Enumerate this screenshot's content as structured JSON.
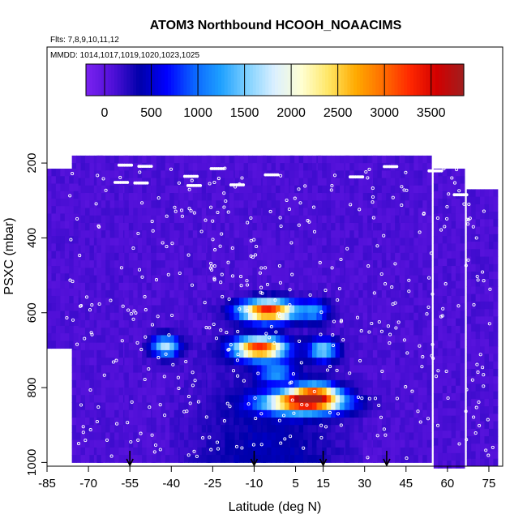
{
  "chart_data": {
    "type": "heatmap",
    "title": "ATOM3 Northbound HCOOH_NOAACIMS",
    "flights_label": "Flts: 7,8,9,10,11,12",
    "dates_label": "MMDD: 1014,1017,1019,1020,1023,1025",
    "xlabel": "Latitude (deg N)",
    "ylabel": "PSXC (mbar)",
    "x_ticks": [
      "-85",
      "-70",
      "-55",
      "-40",
      "-25",
      "-10",
      "5",
      "15",
      "30",
      "45",
      "60",
      "75"
    ],
    "x_tick_values": [
      -85,
      -70,
      -55,
      -40,
      -25,
      -10,
      5,
      15,
      30,
      45,
      60,
      75
    ],
    "x_range": [
      -85,
      80
    ],
    "y_ticks": [
      "200",
      "400",
      "600",
      "800",
      "1000"
    ],
    "y_tick_values": [
      200,
      400,
      600,
      800,
      1000
    ],
    "y_range": [
      1010,
      -110
    ],
    "y_inverted": true,
    "colorbar": {
      "ticks": [
        "0",
        "500",
        "1000",
        "1500",
        "2000",
        "2500",
        "3000",
        "3500"
      ],
      "tick_values": [
        0,
        500,
        1000,
        1500,
        2000,
        2500,
        3000,
        3500
      ],
      "range": [
        -200,
        3850
      ],
      "colors": [
        "#7a22f0",
        "#5010d8",
        "#0000aa",
        "#0000ff",
        "#0a64ff",
        "#1ea0ff",
        "#82d2ff",
        "#dcf0ff",
        "#ffffd2",
        "#ffe664",
        "#ffaa00",
        "#ff6e00",
        "#ff2800",
        "#d20000",
        "#a01e1e"
      ]
    },
    "background_value": 100,
    "hotspots": [
      {
        "lat": -5,
        "p": 595,
        "width": 10,
        "value": 3300
      },
      {
        "lat": -8,
        "p": 695,
        "width": 9,
        "value": 3200
      },
      {
        "lat": 8,
        "p": 840,
        "width": 14,
        "value": 3100
      },
      {
        "lat": 12,
        "p": 815,
        "width": 8,
        "value": 2000
      },
      {
        "lat": 15,
        "p": 700,
        "width": 5,
        "value": 1500
      },
      {
        "lat": -42,
        "p": 690,
        "width": 5,
        "value": 1600
      },
      {
        "lat": 12,
        "p": 595,
        "width": 5,
        "value": 1000
      },
      {
        "lat": -2,
        "p": 760,
        "width": 6,
        "value": 1000
      }
    ],
    "columns": [
      {
        "lat": -71,
        "top": 180,
        "bottom": 1000
      },
      {
        "lat": -80,
        "top": 215,
        "bottom": 680
      },
      {
        "lat": -62,
        "top": 180,
        "bottom": 1000
      },
      {
        "lat": -52,
        "top": 180,
        "bottom": 1000
      },
      {
        "lat": -42,
        "top": 180,
        "bottom": 1000
      },
      {
        "lat": -32,
        "top": 180,
        "bottom": 1000
      },
      {
        "lat": -22,
        "top": 180,
        "bottom": 1000
      },
      {
        "lat": -12,
        "top": 180,
        "bottom": 1000
      },
      {
        "lat": -2,
        "top": 180,
        "bottom": 1000
      },
      {
        "lat": 8,
        "top": 180,
        "bottom": 1000
      },
      {
        "lat": 18,
        "top": 180,
        "bottom": 1000
      },
      {
        "lat": 28,
        "top": 180,
        "bottom": 1000
      },
      {
        "lat": 38,
        "top": 180,
        "bottom": 1000
      },
      {
        "lat": 48,
        "top": 180,
        "bottom": 1000
      },
      {
        "lat": 60,
        "top": 215,
        "bottom": 1000
      },
      {
        "lat": 72,
        "top": 270,
        "bottom": 1000
      }
    ],
    "arrows_lat": [
      -55,
      -10,
      15,
      38
    ],
    "point_color": "#ffffff",
    "grid": false
  }
}
